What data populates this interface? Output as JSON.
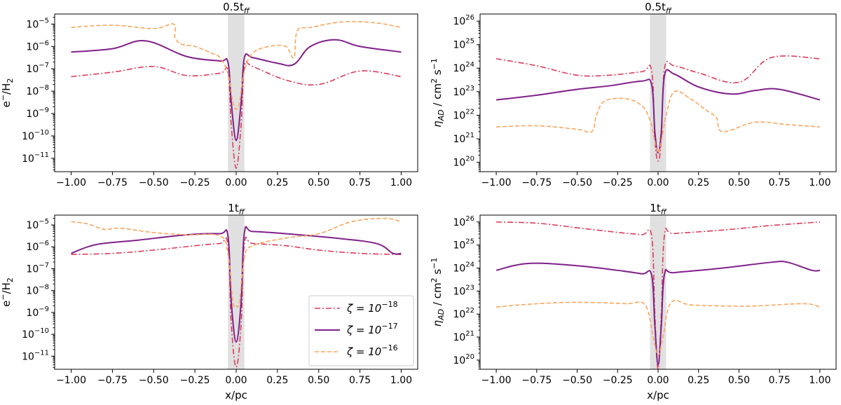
{
  "chart_data": [
    {
      "id": "top-left",
      "type": "line",
      "title": "0.5t",
      "title_sub": "ff",
      "xlabel": "",
      "ylabel_main": "e",
      "ylabel_sup": "−",
      "ylabel_mid": "/H",
      "ylabel_sub": "2",
      "ylabel_end": "",
      "ylabel_prefix": "",
      "ylabel_prefix_sub": "",
      "log_y": true,
      "xlim": [
        -1.1,
        1.1
      ],
      "ylog_lim": [
        -11.6,
        -4.55
      ],
      "x_ticks": [
        -1.0,
        -0.75,
        -0.5,
        -0.25,
        0.0,
        0.25,
        0.5,
        0.75,
        1.0
      ],
      "x_tick_labels": [
        "−1.00",
        "−0.75",
        "−0.50",
        "−0.25",
        "0.00",
        "0.25",
        "0.50",
        "0.75",
        "1.00"
      ],
      "y_tick_exps": [
        -11,
        -10,
        -9,
        -8,
        -7,
        -6,
        -5
      ],
      "y_tick_labels": [
        "−11",
        "−10",
        "−9",
        "−8",
        "−7",
        "−6",
        "−5"
      ],
      "shaded_band": [
        -0.05,
        0.05
      ],
      "series": [
        {
          "name": "ζ=10−18",
          "style": "dashdot",
          "color": "#dc3c5a",
          "x": [
            -1.0,
            -0.75,
            -0.5,
            -0.3,
            -0.1,
            -0.05,
            -0.03,
            0.0,
            0.03,
            0.05,
            0.1,
            0.3,
            0.5,
            0.75,
            1.0
          ],
          "log_y": [
            -7.35,
            -7.15,
            -6.9,
            -7.3,
            -7.2,
            -7.1,
            -9.5,
            -11.45,
            -9.5,
            -6.9,
            -6.9,
            -7.5,
            -7.7,
            -7.1,
            -7.35
          ]
        },
        {
          "name": "ζ=10−17",
          "style": "solid",
          "color": "#80208a",
          "x": [
            -1.0,
            -0.75,
            -0.55,
            -0.3,
            -0.1,
            -0.05,
            -0.03,
            0.0,
            0.03,
            0.05,
            0.1,
            0.25,
            0.35,
            0.45,
            0.6,
            0.75,
            1.0
          ],
          "log_y": [
            -6.25,
            -6.1,
            -5.75,
            -6.45,
            -6.65,
            -6.7,
            -8.5,
            -10.2,
            -8.5,
            -6.5,
            -6.5,
            -6.75,
            -6.8,
            -6.0,
            -5.7,
            -6.0,
            -6.25
          ]
        },
        {
          "name": "ζ=10−16",
          "style": "dashed",
          "color": "#fba55c",
          "x": [
            -1.0,
            -0.75,
            -0.5,
            -0.38,
            -0.37,
            -0.33,
            -0.25,
            -0.15,
            -0.1,
            -0.05,
            -0.02,
            0.0,
            0.02,
            0.05,
            0.1,
            0.2,
            0.3,
            0.35,
            0.37,
            0.45,
            0.65,
            0.85,
            1.0
          ],
          "log_y": [
            -5.15,
            -5.05,
            -5.2,
            -5.0,
            -5.6,
            -5.9,
            -6.0,
            -6.3,
            -6.5,
            -7.2,
            -8.5,
            -8.8,
            -8.5,
            -7.1,
            -6.3,
            -6.0,
            -6.0,
            -6.5,
            -5.3,
            -5.15,
            -4.9,
            -4.95,
            -5.15
          ]
        }
      ]
    },
    {
      "id": "top-right",
      "type": "line",
      "title": "0.5t",
      "title_sub": "ff",
      "xlabel": "",
      "ylabel_prefix": "η",
      "ylabel_prefix_sub": "AD",
      "ylabel_main": " / cm",
      "ylabel_sup": "2",
      "ylabel_mid": " s",
      "ylabel_sub": "",
      "ylabel_end": "−1",
      "log_y": true,
      "xlim": [
        -1.1,
        1.1
      ],
      "ylog_lim": [
        19.6,
        26.3
      ],
      "x_ticks": [
        -1.0,
        -0.75,
        -0.5,
        -0.25,
        0.0,
        0.25,
        0.5,
        0.75,
        1.0
      ],
      "x_tick_labels": [
        "−1.00",
        "−0.75",
        "−0.50",
        "−0.25",
        "0.00",
        "0.25",
        "0.50",
        "0.75",
        "1.00"
      ],
      "y_tick_exps": [
        20,
        21,
        22,
        23,
        24,
        25,
        26
      ],
      "y_tick_labels": [
        "20",
        "21",
        "22",
        "23",
        "24",
        "25",
        "26"
      ],
      "shaded_band": [
        -0.05,
        0.05
      ],
      "series": [
        {
          "name": "ζ=10−18",
          "style": "dashdot",
          "color": "#dc3c5a",
          "x": [
            -1.0,
            -0.75,
            -0.5,
            -0.3,
            -0.1,
            -0.04,
            -0.02,
            0.0,
            0.02,
            0.04,
            0.1,
            0.25,
            0.5,
            0.7,
            1.0
          ],
          "log_y": [
            24.4,
            24.1,
            23.7,
            23.7,
            23.85,
            23.9,
            21.0,
            20.05,
            21.0,
            24.0,
            24.1,
            23.8,
            23.4,
            24.45,
            24.4
          ]
        },
        {
          "name": "ζ=10−17",
          "style": "solid",
          "color": "#80208a",
          "x": [
            -1.0,
            -0.75,
            -0.5,
            -0.3,
            -0.1,
            -0.04,
            -0.02,
            0.0,
            0.02,
            0.04,
            0.1,
            0.25,
            0.45,
            0.6,
            0.75,
            1.0
          ],
          "log_y": [
            22.65,
            22.85,
            23.1,
            23.25,
            23.45,
            23.3,
            21.3,
            20.4,
            21.3,
            23.7,
            23.75,
            23.2,
            22.9,
            23.05,
            23.1,
            22.65
          ]
        },
        {
          "name": "ζ=10−16",
          "style": "dashed",
          "color": "#fba55c",
          "x": [
            -1.0,
            -0.75,
            -0.5,
            -0.41,
            -0.38,
            -0.33,
            -0.2,
            -0.1,
            -0.05,
            -0.02,
            0.0,
            0.02,
            0.05,
            0.1,
            0.2,
            0.3,
            0.36,
            0.4,
            0.6,
            0.8,
            1.0
          ],
          "log_y": [
            21.5,
            21.55,
            21.4,
            21.3,
            22.0,
            22.6,
            22.7,
            22.4,
            21.8,
            20.9,
            20.4,
            20.9,
            22.0,
            23.0,
            22.7,
            22.2,
            21.9,
            21.3,
            21.7,
            21.6,
            21.5
          ]
        }
      ]
    },
    {
      "id": "bottom-left",
      "type": "line",
      "title": "1t",
      "title_sub": "ff",
      "xlabel": "x/pc",
      "ylabel_main": "e",
      "ylabel_sup": "−",
      "ylabel_mid": "/H",
      "ylabel_sub": "2",
      "ylabel_end": "",
      "ylabel_prefix": "",
      "ylabel_prefix_sub": "",
      "log_y": true,
      "xlim": [
        -1.1,
        1.1
      ],
      "ylog_lim": [
        -11.6,
        -4.55
      ],
      "x_ticks": [
        -1.0,
        -0.75,
        -0.5,
        -0.25,
        0.0,
        0.25,
        0.5,
        0.75,
        1.0
      ],
      "x_tick_labels": [
        "−1.00",
        "−0.75",
        "−0.50",
        "−0.25",
        "0.00",
        "0.25",
        "0.50",
        "0.75",
        "1.00"
      ],
      "y_tick_exps": [
        -11,
        -10,
        -9,
        -8,
        -7,
        -6,
        -5
      ],
      "y_tick_labels": [
        "−11",
        "−10",
        "−9",
        "−8",
        "−7",
        "−6",
        "−5"
      ],
      "shaded_band": [
        -0.05,
        0.05
      ],
      "series": [
        {
          "name": "ζ=10−18",
          "style": "dashdot",
          "color": "#dc3c5a",
          "x": [
            -1.0,
            -0.75,
            -0.5,
            -0.25,
            -0.1,
            -0.05,
            -0.03,
            0.0,
            0.03,
            0.05,
            0.1,
            0.3,
            0.5,
            0.75,
            1.0
          ],
          "log_y": [
            -6.35,
            -6.3,
            -6.15,
            -5.95,
            -5.85,
            -5.9,
            -9.5,
            -11.5,
            -9.5,
            -5.85,
            -5.85,
            -5.95,
            -6.15,
            -6.3,
            -6.35
          ]
        },
        {
          "name": "ζ=10−17",
          "style": "solid",
          "color": "#80208a",
          "x": [
            -1.0,
            -0.85,
            -0.6,
            -0.3,
            -0.1,
            -0.05,
            -0.03,
            0.0,
            0.03,
            0.05,
            0.1,
            0.3,
            0.6,
            0.85,
            0.95,
            1.0
          ],
          "log_y": [
            -6.3,
            -5.9,
            -5.7,
            -5.45,
            -5.4,
            -5.5,
            -8.5,
            -10.35,
            -8.5,
            -5.35,
            -5.3,
            -5.4,
            -5.6,
            -5.85,
            -6.3,
            -6.3
          ]
        },
        {
          "name": "ζ=10−16",
          "style": "dashed",
          "color": "#fba55c",
          "x": [
            -1.0,
            -0.9,
            -0.8,
            -0.7,
            -0.5,
            -0.3,
            -0.1,
            -0.05,
            -0.02,
            0.0,
            0.02,
            0.05,
            0.1,
            0.3,
            0.5,
            0.7,
            0.9,
            1.0
          ],
          "log_y": [
            -4.85,
            -4.95,
            -5.2,
            -5.15,
            -5.35,
            -5.45,
            -5.5,
            -6.3,
            -8.5,
            -8.7,
            -8.5,
            -6.5,
            -5.95,
            -5.6,
            -5.4,
            -4.85,
            -4.7,
            -4.85
          ]
        }
      ]
    },
    {
      "id": "bottom-right",
      "type": "line",
      "title": "1t",
      "title_sub": "ff",
      "xlabel": "x/pc",
      "ylabel_prefix": "η",
      "ylabel_prefix_sub": "AD",
      "ylabel_main": " / cm",
      "ylabel_sup": "2",
      "ylabel_mid": " s",
      "ylabel_sub": "",
      "ylabel_end": "−1",
      "log_y": true,
      "xlim": [
        -1.1,
        1.1
      ],
      "ylog_lim": [
        19.6,
        26.3
      ],
      "x_ticks": [
        -1.0,
        -0.75,
        -0.5,
        -0.25,
        0.0,
        0.25,
        0.5,
        0.75,
        1.0
      ],
      "x_tick_labels": [
        "−1.00",
        "−0.75",
        "−0.50",
        "−0.25",
        "0.00",
        "0.25",
        "0.50",
        "0.75",
        "1.00"
      ],
      "y_tick_exps": [
        20,
        21,
        22,
        23,
        24,
        25,
        26
      ],
      "y_tick_labels": [
        "20",
        "21",
        "22",
        "23",
        "24",
        "25",
        "26"
      ],
      "shaded_band": [
        -0.05,
        0.05
      ],
      "series": [
        {
          "name": "ζ=10−18",
          "style": "dashdot",
          "color": "#dc3c5a",
          "x": [
            -1.0,
            -0.75,
            -0.5,
            -0.25,
            -0.1,
            -0.04,
            -0.02,
            0.0,
            0.02,
            0.04,
            0.1,
            0.4,
            0.7,
            1.0
          ],
          "log_y": [
            26.0,
            25.95,
            25.75,
            25.55,
            25.45,
            25.4,
            22.0,
            19.6,
            22.0,
            25.45,
            25.5,
            25.65,
            25.85,
            26.0
          ]
        },
        {
          "name": "ζ=10−17",
          "style": "solid",
          "color": "#80208a",
          "x": [
            -1.0,
            -0.8,
            -0.5,
            -0.25,
            -0.1,
            -0.04,
            -0.02,
            0.0,
            0.02,
            0.04,
            0.1,
            0.4,
            0.7,
            0.8,
            0.95,
            1.0
          ],
          "log_y": [
            23.9,
            24.2,
            24.1,
            23.9,
            23.75,
            23.7,
            21.5,
            19.8,
            21.5,
            23.75,
            23.8,
            24.0,
            24.25,
            24.25,
            23.9,
            23.9
          ]
        },
        {
          "name": "ζ=10−16",
          "style": "dashed",
          "color": "#fba55c",
          "x": [
            -1.0,
            -0.85,
            -0.6,
            -0.4,
            -0.2,
            -0.08,
            -0.03,
            0.0,
            0.03,
            0.08,
            0.2,
            0.4,
            0.6,
            0.9,
            1.0
          ],
          "log_y": [
            22.3,
            22.4,
            22.5,
            22.5,
            22.45,
            22.4,
            21.0,
            20.2,
            21.0,
            22.5,
            22.4,
            22.35,
            22.35,
            22.45,
            22.3
          ]
        }
      ]
    }
  ],
  "legend": {
    "location": "lower-right of bottom-left panel",
    "entries": [
      {
        "label_prefix": "ζ = 10",
        "label_exp": "−18",
        "style": "dashdot",
        "color": "#dc3c5a"
      },
      {
        "label_prefix": "ζ = 10",
        "label_exp": "−17",
        "style": "solid",
        "color": "#80208a"
      },
      {
        "label_prefix": "ζ = 10",
        "label_exp": "−16",
        "style": "dashed",
        "color": "#fba55c"
      }
    ]
  }
}
